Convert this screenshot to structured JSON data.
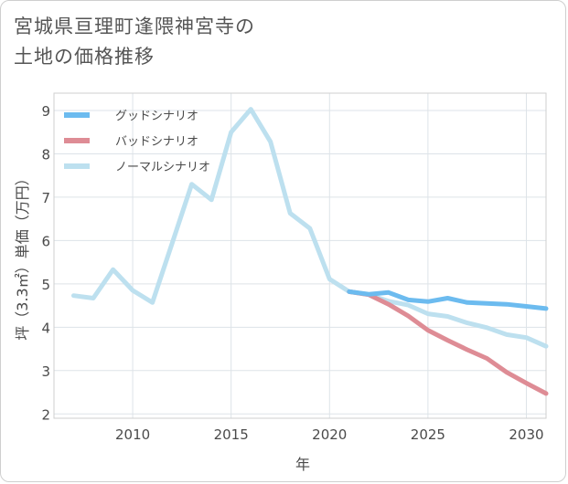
{
  "title_line1": "宮城県亘理町逢隈神宮寺の",
  "title_line2": "土地の価格推移",
  "chart_data": {
    "type": "line",
    "title": "宮城県亘理町逢隈神宮寺の土地の価格推移",
    "xlabel": "年",
    "ylabel": "坪（3.3㎡）単価（万円）",
    "xlim": [
      2006,
      2031
    ],
    "ylim": [
      1.9,
      9.4
    ],
    "xticks": [
      2010,
      2015,
      2020,
      2025,
      2030
    ],
    "yticks": [
      2,
      3,
      4,
      5,
      6,
      7,
      8,
      9
    ],
    "grid": true,
    "legend_position": "top-left",
    "series": [
      {
        "name": "グッドシナリオ",
        "color": "#6cbbef",
        "x": [
          2021,
          2022,
          2023,
          2024,
          2025,
          2026,
          2027,
          2028,
          2029,
          2030,
          2031
        ],
        "values": [
          4.82,
          4.76,
          4.8,
          4.63,
          4.59,
          4.67,
          4.57,
          4.55,
          4.53,
          4.48,
          4.43
        ]
      },
      {
        "name": "バッドシナリオ",
        "color": "#de8c95",
        "x": [
          2021,
          2022,
          2023,
          2024,
          2025,
          2026,
          2027,
          2028,
          2029,
          2030,
          2031
        ],
        "values": [
          4.82,
          4.75,
          4.53,
          4.26,
          3.93,
          3.7,
          3.48,
          3.28,
          2.96,
          2.71,
          2.47
        ]
      },
      {
        "name": "ノーマルシナリオ",
        "color": "#bde0ef",
        "x": [
          2007,
          2008,
          2009,
          2010,
          2011,
          2012,
          2013,
          2014,
          2015,
          2016,
          2017,
          2018,
          2019,
          2020,
          2021,
          2022,
          2023,
          2024,
          2025,
          2026,
          2027,
          2028,
          2029,
          2030,
          2031
        ],
        "values": [
          4.73,
          4.67,
          5.33,
          4.85,
          4.57,
          5.93,
          7.3,
          6.94,
          8.5,
          9.03,
          8.28,
          6.63,
          6.28,
          5.11,
          4.82,
          4.75,
          4.6,
          4.51,
          4.31,
          4.25,
          4.1,
          3.99,
          3.83,
          3.76,
          3.56
        ]
      }
    ]
  }
}
